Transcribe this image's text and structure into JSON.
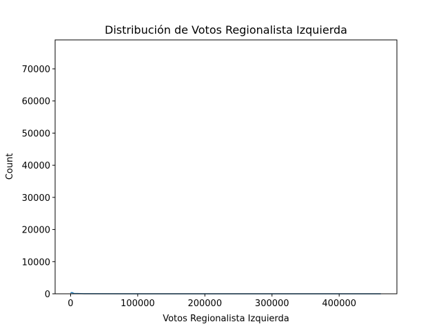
{
  "chart_data": {
    "type": "histogram",
    "title": "Distribución de Votos Regionalista Izquierda",
    "xlabel": "Votos Regionalista Izquierda",
    "ylabel": "Count",
    "xlim": [
      -23000,
      486000
    ],
    "ylim": [
      0,
      79000
    ],
    "x_ticks": [
      0,
      100000,
      200000,
      300000,
      400000
    ],
    "x_tick_labels": [
      "0",
      "100000",
      "200000",
      "300000",
      "400000"
    ],
    "y_ticks": [
      0,
      10000,
      20000,
      30000,
      40000,
      50000,
      60000,
      70000
    ],
    "y_tick_labels": [
      "0",
      "10000",
      "20000",
      "30000",
      "40000",
      "50000",
      "60000",
      "70000"
    ],
    "grid": false,
    "line_color": "#1f77b4",
    "kde": {
      "x": [
        0,
        2000,
        5000,
        20000,
        100000,
        200000,
        300000,
        400000,
        462000
      ],
      "y": [
        250,
        400,
        120,
        20,
        5,
        2,
        1,
        1,
        1
      ]
    }
  }
}
